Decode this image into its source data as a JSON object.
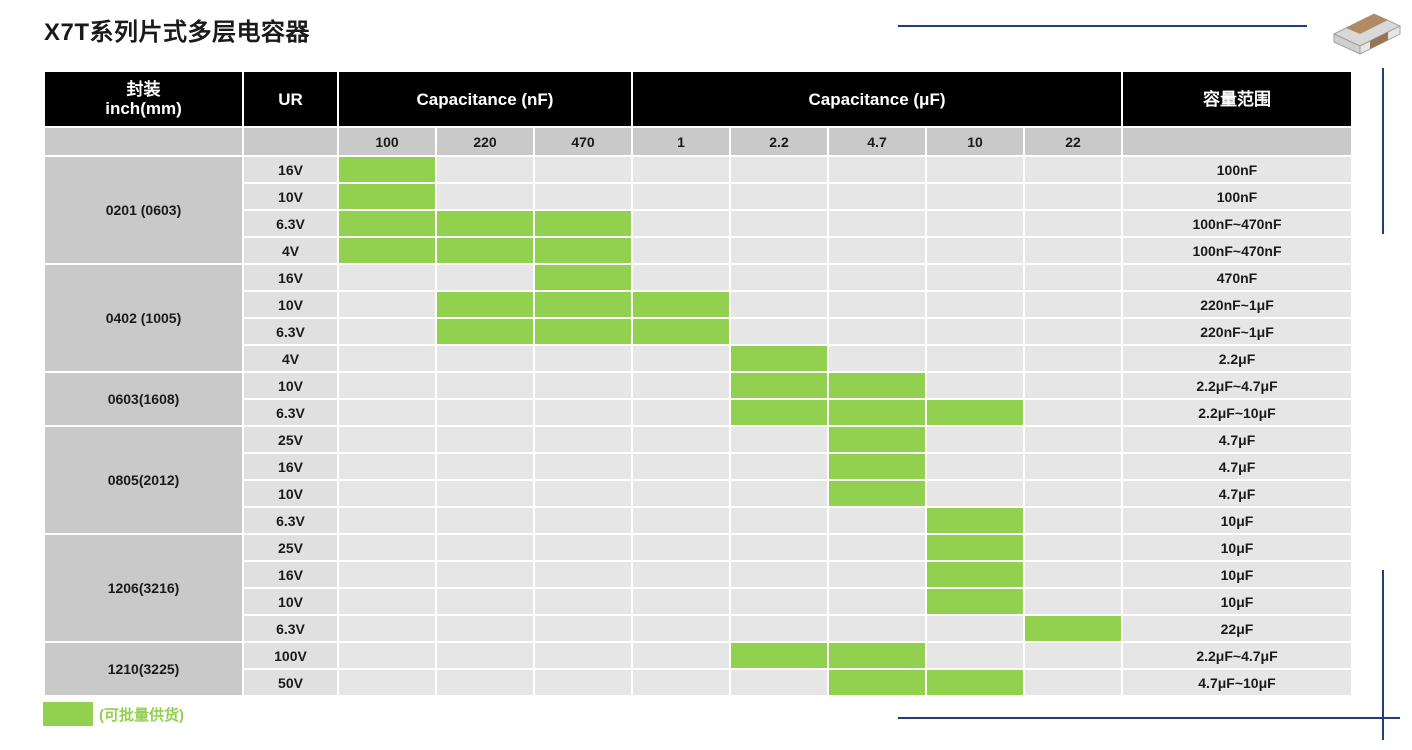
{
  "title": "X7T系列片式多层电容器",
  "colors": {
    "header_bg": "#000000",
    "available": "#92d050",
    "line": "#1f3f7a"
  },
  "icon": "capacitor-chip-icon",
  "header": {
    "package_line1": "封装",
    "package_line2": "inch(mm)",
    "ur": "UR",
    "cap_nf": "Capacitance (nF)",
    "cap_uf": "Capacitance (μF)",
    "range": "容量范围"
  },
  "columns": [
    "100",
    "220",
    "470",
    "1",
    "2.2",
    "4.7",
    "10",
    "22"
  ],
  "packages": [
    {
      "name": "0201 (0603)",
      "rows": [
        {
          "ur": "16V",
          "cells": [
            1,
            0,
            0,
            0,
            0,
            0,
            0,
            0
          ],
          "range": "100nF"
        },
        {
          "ur": "10V",
          "cells": [
            1,
            0,
            0,
            0,
            0,
            0,
            0,
            0
          ],
          "range": "100nF"
        },
        {
          "ur": "6.3V",
          "cells": [
            1,
            1,
            1,
            0,
            0,
            0,
            0,
            0
          ],
          "range": "100nF~470nF"
        },
        {
          "ur": "4V",
          "cells": [
            1,
            1,
            1,
            0,
            0,
            0,
            0,
            0
          ],
          "range": "100nF~470nF"
        }
      ]
    },
    {
      "name": "0402 (1005)",
      "rows": [
        {
          "ur": "16V",
          "cells": [
            0,
            0,
            1,
            0,
            0,
            0,
            0,
            0
          ],
          "range": "470nF"
        },
        {
          "ur": "10V",
          "cells": [
            0,
            1,
            1,
            1,
            0,
            0,
            0,
            0
          ],
          "range": "220nF~1μF"
        },
        {
          "ur": "6.3V",
          "cells": [
            0,
            1,
            1,
            1,
            0,
            0,
            0,
            0
          ],
          "range": "220nF~1μF"
        },
        {
          "ur": "4V",
          "cells": [
            0,
            0,
            0,
            0,
            1,
            0,
            0,
            0
          ],
          "range": "2.2μF"
        }
      ]
    },
    {
      "name": "0603(1608)",
      "rows": [
        {
          "ur": "10V",
          "cells": [
            0,
            0,
            0,
            0,
            1,
            1,
            0,
            0
          ],
          "range": "2.2μF~4.7μF"
        },
        {
          "ur": "6.3V",
          "cells": [
            0,
            0,
            0,
            0,
            1,
            1,
            1,
            0
          ],
          "range": "2.2μF~10μF"
        }
      ]
    },
    {
      "name": "0805(2012)",
      "rows": [
        {
          "ur": "25V",
          "cells": [
            0,
            0,
            0,
            0,
            0,
            1,
            0,
            0
          ],
          "range": "4.7μF"
        },
        {
          "ur": "16V",
          "cells": [
            0,
            0,
            0,
            0,
            0,
            1,
            0,
            0
          ],
          "range": "4.7μF"
        },
        {
          "ur": "10V",
          "cells": [
            0,
            0,
            0,
            0,
            0,
            1,
            0,
            0
          ],
          "range": "4.7μF"
        },
        {
          "ur": "6.3V",
          "cells": [
            0,
            0,
            0,
            0,
            0,
            0,
            1,
            0
          ],
          "range": "10μF"
        }
      ]
    },
    {
      "name": "1206(3216)",
      "rows": [
        {
          "ur": "25V",
          "cells": [
            0,
            0,
            0,
            0,
            0,
            0,
            1,
            0
          ],
          "range": "10μF"
        },
        {
          "ur": "16V",
          "cells": [
            0,
            0,
            0,
            0,
            0,
            0,
            1,
            0
          ],
          "range": "10μF"
        },
        {
          "ur": "10V",
          "cells": [
            0,
            0,
            0,
            0,
            0,
            0,
            1,
            0
          ],
          "range": "10μF"
        },
        {
          "ur": "6.3V",
          "cells": [
            0,
            0,
            0,
            0,
            0,
            0,
            0,
            1
          ],
          "range": "22μF"
        }
      ]
    },
    {
      "name": "1210(3225)",
      "rows": [
        {
          "ur": "100V",
          "cells": [
            0,
            0,
            0,
            0,
            1,
            1,
            0,
            0
          ],
          "range": "2.2μF~4.7μF"
        },
        {
          "ur": "50V",
          "cells": [
            0,
            0,
            0,
            0,
            0,
            1,
            1,
            0
          ],
          "range": "4.7μF~10μF"
        }
      ]
    }
  ],
  "legend": {
    "text": "(可批量供货)"
  }
}
